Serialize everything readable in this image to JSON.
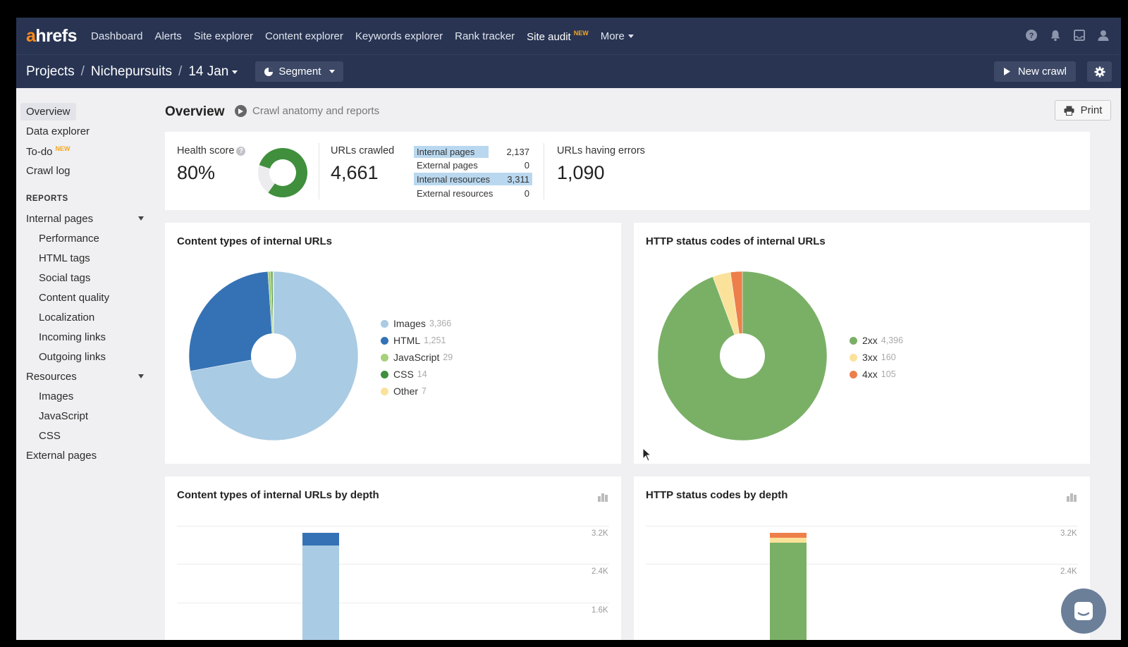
{
  "brand": {
    "logo_a": "a",
    "logo_rest": "hrefs"
  },
  "nav": {
    "items": [
      "Dashboard",
      "Alerts",
      "Site explorer",
      "Content explorer",
      "Keywords explorer",
      "Rank tracker",
      "Site audit",
      "More"
    ],
    "site_audit_badge": "NEW",
    "icons": [
      "help-icon",
      "bell-icon",
      "inbox-icon",
      "user-icon"
    ]
  },
  "subbar": {
    "crumbs": [
      "Projects",
      "Nichepursuits",
      "14 Jan"
    ],
    "separator": "/",
    "segment_label": "Segment",
    "new_crawl_label": "New crawl"
  },
  "sidebar": {
    "top": [
      {
        "label": "Overview",
        "active": true
      },
      {
        "label": "Data explorer"
      },
      {
        "label": "To-do",
        "badge": "NEW"
      },
      {
        "label": "Crawl log"
      }
    ],
    "reports_heading": "REPORTS",
    "internal_pages": "Internal pages",
    "internal_sub": [
      "Performance",
      "HTML tags",
      "Social tags",
      "Content quality",
      "Localization",
      "Incoming links",
      "Outgoing links"
    ],
    "resources": "Resources",
    "resources_sub": [
      "Images",
      "JavaScript",
      "CSS"
    ],
    "external_pages": "External pages"
  },
  "main": {
    "title": "Overview",
    "subtitle": "Crawl anatomy and reports",
    "print_label": "Print"
  },
  "summary": {
    "health_label": "Health score",
    "health_value": "80%",
    "health_score": 80,
    "urls_crawled_label": "URLs crawled",
    "urls_crawled_value": "4,661",
    "rows": [
      {
        "name": "Internal pages",
        "value": "2,137"
      },
      {
        "name": "External pages",
        "value": "0"
      },
      {
        "name": "Internal resources",
        "value": "3,311"
      },
      {
        "name": "External resources",
        "value": "0"
      }
    ],
    "errors_label": "URLs having errors",
    "errors_value": "1,090"
  },
  "colors": {
    "images": "#a9cbe4",
    "html": "#3572b5",
    "javascript": "#a5d17c",
    "css": "#3f8f3c",
    "other": "#fbe29a",
    "2xx": "#7ab066",
    "3xx": "#fbe29a",
    "4xx": "#ed7f4b",
    "nav_bg": "#283452"
  },
  "chart_data": [
    {
      "type": "pie",
      "title": "Content types of internal URLs",
      "categories": [
        "Images",
        "HTML",
        "JavaScript",
        "CSS",
        "Other"
      ],
      "values": [
        3366,
        1251,
        29,
        14,
        7
      ],
      "labels": [
        "3,366",
        "1,251",
        "29",
        "14",
        "7"
      ]
    },
    {
      "type": "pie",
      "title": "HTTP status codes of internal URLs",
      "categories": [
        "2xx",
        "3xx",
        "4xx"
      ],
      "values": [
        4396,
        160,
        105
      ],
      "labels": [
        "4,396",
        "160",
        "105"
      ]
    },
    {
      "type": "bar",
      "title": "Content types of internal URLs by depth",
      "yticks": [
        "3.2K",
        "2.4K",
        "1.6K"
      ]
    },
    {
      "type": "bar",
      "title": "HTTP status codes by depth",
      "yticks": [
        "3.2K",
        "2.4K"
      ]
    }
  ]
}
